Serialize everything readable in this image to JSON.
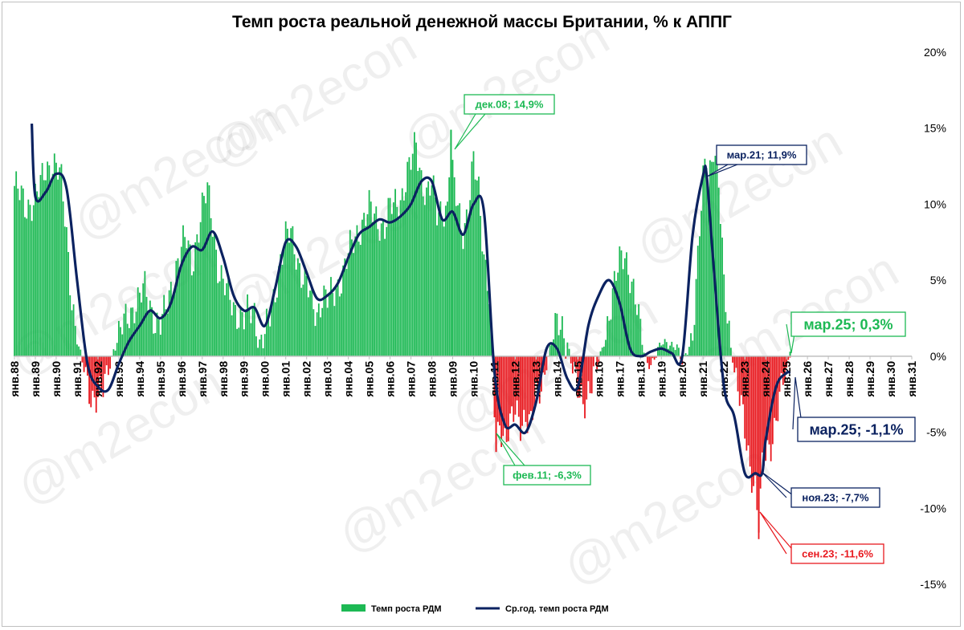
{
  "chart_data": {
    "type": "bar",
    "title": "Темп роста реальной денежной массы Британии, % к АППГ",
    "xlabel": "",
    "ylabel": "",
    "ylim": [
      -15,
      20
    ],
    "yticks": [
      -15,
      -10,
      -5,
      0,
      5,
      10,
      15,
      20
    ],
    "ytick_labels": [
      "-15%",
      "-10%",
      "-5%",
      "0%",
      "5%",
      "10%",
      "15%",
      "20%"
    ],
    "xlim": [
      1988.0,
      2031.0
    ],
    "xtick_labels": [
      "янв.88",
      "янв.89",
      "янв.90",
      "янв.91",
      "янв.92",
      "янв.93",
      "янв.94",
      "янв.95",
      "янв.96",
      "янв.97",
      "янв.98",
      "янв.99",
      "янв.00",
      "янв.01",
      "янв.02",
      "янв.03",
      "янв.04",
      "янв.05",
      "янв.06",
      "янв.07",
      "янв.08",
      "янв.09",
      "янв.10",
      "янв.11",
      "янв.12",
      "янв.13",
      "янв.14",
      "янв.15",
      "янв.16",
      "янв.17",
      "янв.18",
      "янв.19",
      "янв.20",
      "янв.21",
      "янв.22",
      "янв.23",
      "янв.24",
      "янв.25",
      "янв.26",
      "янв.27",
      "янв.28",
      "янв.29",
      "янв.30",
      "янв.31"
    ],
    "grid": false,
    "legend_position": "bottom",
    "positive_color": "#1db954",
    "negative_color": "#e8191f",
    "avg_line_color": "#0b2260",
    "series": [
      {
        "name": "Темп роста РДМ",
        "kind": "bar",
        "x": [
          1988.0,
          1988.25,
          1988.5,
          1988.75,
          1989.0,
          1989.25,
          1989.5,
          1989.75,
          1990.0,
          1990.25,
          1990.5,
          1990.75,
          1991.0,
          1991.25,
          1991.5,
          1991.75,
          1992.0,
          1992.25,
          1992.5,
          1992.75,
          1993.0,
          1993.25,
          1993.5,
          1993.75,
          1994.0,
          1994.25,
          1994.5,
          1994.75,
          1995.0,
          1995.25,
          1995.5,
          1995.75,
          1996.0,
          1996.25,
          1996.5,
          1996.75,
          1997.0,
          1997.25,
          1997.5,
          1997.75,
          1998.0,
          1998.25,
          1998.5,
          1998.75,
          1999.0,
          1999.25,
          1999.5,
          1999.75,
          2000.0,
          2000.25,
          2000.5,
          2000.75,
          2001.0,
          2001.25,
          2001.5,
          2001.75,
          2002.0,
          2002.25,
          2002.5,
          2002.75,
          2003.0,
          2003.25,
          2003.5,
          2003.75,
          2004.0,
          2004.25,
          2004.5,
          2004.75,
          2005.0,
          2005.25,
          2005.5,
          2005.75,
          2006.0,
          2006.25,
          2006.5,
          2006.75,
          2007.0,
          2007.25,
          2007.5,
          2007.75,
          2008.0,
          2008.25,
          2008.5,
          2008.75,
          2008.92,
          2009.0,
          2009.25,
          2009.5,
          2009.75,
          2010.0,
          2010.25,
          2010.5,
          2010.75,
          2011.08,
          2011.25,
          2011.5,
          2011.75,
          2012.0,
          2012.25,
          2012.5,
          2012.75,
          2013.0,
          2013.25,
          2013.5,
          2013.75,
          2014.0,
          2014.25,
          2014.5,
          2014.75,
          2015.0,
          2015.25,
          2015.5,
          2015.75,
          2016.0,
          2016.25,
          2016.5,
          2016.75,
          2017.0,
          2017.25,
          2017.5,
          2017.75,
          2018.0,
          2018.25,
          2018.5,
          2018.75,
          2019.0,
          2019.25,
          2019.5,
          2019.75,
          2020.0,
          2020.25,
          2020.5,
          2020.75,
          2021.0,
          2021.17,
          2021.25,
          2021.5,
          2021.75,
          2022.0,
          2022.25,
          2022.5,
          2022.75,
          2023.0,
          2023.25,
          2023.5,
          2023.67,
          2023.83,
          2024.0,
          2024.25,
          2024.5,
          2024.75,
          2025.0,
          2025.17
        ],
        "values": [
          11.2,
          10.5,
          9.8,
          10.2,
          10.4,
          11.0,
          12.3,
          12.8,
          12.6,
          11.2,
          8.0,
          4.0,
          1.0,
          -0.5,
          -1.8,
          -2.5,
          -2.8,
          -2.4,
          -1.0,
          0.5,
          1.2,
          2.0,
          2.8,
          3.5,
          3.8,
          4.2,
          3.4,
          2.5,
          2.0,
          2.8,
          4.5,
          6.0,
          7.0,
          7.5,
          6.2,
          8.0,
          9.5,
          10.8,
          9.0,
          6.0,
          4.5,
          4.0,
          3.5,
          2.8,
          2.2,
          2.8,
          3.2,
          1.0,
          1.2,
          2.5,
          4.5,
          6.5,
          7.5,
          8.0,
          7.0,
          5.5,
          4.5,
          3.5,
          3.0,
          4.0,
          3.5,
          4.0,
          4.8,
          5.5,
          6.5,
          7.5,
          8.5,
          9.0,
          9.5,
          9.2,
          9.0,
          8.5,
          9.5,
          10.0,
          10.5,
          11.5,
          12.5,
          14.0,
          12.0,
          10.5,
          11.0,
          9.5,
          10.0,
          9.5,
          14.9,
          11.5,
          10.0,
          8.5,
          9.5,
          12.5,
          11.0,
          7.0,
          4.0,
          -6.3,
          -4.5,
          -5.0,
          -4.5,
          -4.0,
          -4.5,
          -3.5,
          -4.5,
          -3.0,
          -2.0,
          -0.5,
          1.0,
          1.8,
          2.0,
          1.0,
          -1.0,
          -2.5,
          -3.0,
          -2.0,
          -1.5,
          -0.5,
          1.0,
          3.0,
          4.5,
          6.0,
          7.0,
          5.5,
          3.5,
          1.5,
          -0.2,
          -0.5,
          0.0,
          0.8,
          1.0,
          0.8,
          0.5,
          -0.5,
          0.5,
          1.5,
          6.0,
          11.5,
          13.5,
          11.9,
          14.0,
          11.0,
          4.5,
          2.0,
          -1.0,
          -3.0,
          -5.0,
          -7.0,
          -8.5,
          -11.6,
          -7.7,
          -6.5,
          -5.5,
          -4.0,
          -2.5,
          -1.0,
          0.3
        ]
      },
      {
        "name": "Ср.год. темп роста РДМ",
        "kind": "line",
        "x": [
          1988.0,
          1988.5,
          1988.83,
          1989.0,
          1989.5,
          1990.0,
          1990.5,
          1991.0,
          1991.5,
          1992.0,
          1992.5,
          1993.0,
          1993.5,
          1994.0,
          1994.5,
          1995.0,
          1995.5,
          1996.0,
          1996.5,
          1997.0,
          1997.5,
          1998.0,
          1998.5,
          1999.0,
          1999.5,
          2000.0,
          2000.5,
          2001.0,
          2001.5,
          2002.0,
          2002.5,
          2003.0,
          2003.5,
          2004.0,
          2004.5,
          2005.0,
          2005.5,
          2006.0,
          2006.5,
          2007.0,
          2007.5,
          2008.0,
          2008.5,
          2009.0,
          2009.5,
          2010.0,
          2010.5,
          2011.0,
          2011.5,
          2012.0,
          2012.5,
          2013.0,
          2013.5,
          2014.0,
          2014.5,
          2015.0,
          2015.5,
          2016.0,
          2016.5,
          2017.0,
          2017.5,
          2018.0,
          2018.5,
          2019.0,
          2019.5,
          2020.0,
          2020.5,
          2021.0,
          2021.17,
          2021.5,
          2022.0,
          2022.5,
          2023.0,
          2023.5,
          2023.83,
          2024.0,
          2024.5,
          2025.0,
          2025.17
        ],
        "values": [
          null,
          null,
          15.3,
          10.5,
          10.8,
          12.0,
          11.0,
          5.0,
          -0.5,
          -2.0,
          -2.2,
          -0.5,
          1.0,
          2.0,
          3.0,
          2.5,
          3.5,
          6.0,
          7.2,
          7.0,
          8.2,
          6.5,
          4.0,
          3.0,
          3.2,
          2.0,
          4.5,
          7.5,
          7.2,
          5.5,
          3.8,
          4.0,
          4.8,
          6.5,
          8.0,
          8.5,
          9.0,
          8.8,
          9.2,
          10.0,
          11.5,
          11.5,
          9.0,
          9.5,
          8.0,
          10.0,
          9.5,
          -1.0,
          -4.5,
          -4.5,
          -5.0,
          -3.0,
          0.5,
          0.5,
          -1.5,
          -2.0,
          2.0,
          4.0,
          5.0,
          3.5,
          0.5,
          0.0,
          0.3,
          0.5,
          0.2,
          0.0,
          8.0,
          11.9,
          11.9,
          6.0,
          -2.0,
          -4.0,
          -7.7,
          -7.7,
          -7.7,
          -5.5,
          -2.0,
          -1.1,
          -1.1
        ]
      }
    ],
    "annotations": [
      {
        "text": "дек.08; 14,9%",
        "x": 2008.92,
        "y": 14.9,
        "color": "#1db954"
      },
      {
        "text": "мар.21; 11,9%",
        "x": 2021.17,
        "y": 11.9,
        "color": "#0b2260"
      },
      {
        "text": "мар.25; 0,3%",
        "x": 2025.17,
        "y": 0.3,
        "color": "#1db954"
      },
      {
        "text": "мар.25; -1,1%",
        "x": 2025.17,
        "y": -1.1,
        "color": "#0b2260"
      },
      {
        "text": "фев.11; -6,3%",
        "x": 2011.08,
        "y": -6.3,
        "color": "#1db954"
      },
      {
        "text": "ноя.23; -7,7%",
        "x": 2023.83,
        "y": -7.7,
        "color": "#0b2260"
      },
      {
        "text": "сен.23; -11,6%",
        "x": 2023.67,
        "y": -11.6,
        "color": "#e8191f"
      }
    ],
    "watermark": "@m2econ"
  }
}
